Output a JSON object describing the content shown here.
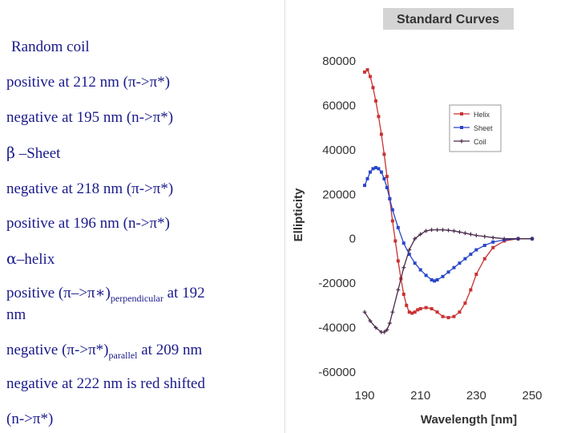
{
  "notes": {
    "random_coil": {
      "heading": "Random coil",
      "line1": "positive at 212 nm (π->π*)",
      "line2": "negative at 195 nm (n->π*)"
    },
    "beta_sheet": {
      "heading_symbol": "β",
      "heading": "–Sheet",
      "line1": "negative at 218 nm (π->π*)",
      "line2": "positive at 196 nm (n->π*)"
    },
    "alpha_helix": {
      "heading_symbol": "α",
      "heading": "–helix",
      "line1_pre": "positive (π–>π∗)",
      "line1_sub": "perpendicular",
      "line1_post": " at 192",
      "line1_cont": "nm",
      "line2_pre": "negative (π->π*)",
      "line2_sub": "parallel",
      "line2_post": " at 209 nm",
      "line3": "negative at 222 nm is red shifted",
      "line4": "(n->π*)"
    }
  },
  "chart_data": {
    "type": "line",
    "title": "Standard Curves",
    "xlabel": "Wavelength [nm]",
    "ylabel": "Ellipticity",
    "xlim": [
      190,
      250
    ],
    "ylim": [
      -60000,
      80000
    ],
    "xticks": [
      190,
      210,
      230,
      250
    ],
    "yticks": [
      80000,
      60000,
      40000,
      20000,
      0,
      -20000,
      -40000,
      -60000
    ],
    "ytick_labels": [
      "80000",
      "60000",
      "40000",
      "20000",
      "0",
      "-20000",
      "-40000",
      "-60000"
    ],
    "legend_position": "top-right",
    "colors": {
      "helix": "#c83232",
      "sheet": "#2846c8",
      "coil": "#4a2a4a",
      "title_bg": "#d4d4d4"
    },
    "series": [
      {
        "name": "Helix",
        "color_key": "helix",
        "x": [
          190,
          191,
          192,
          193,
          194,
          195,
          196,
          197,
          198,
          199,
          200,
          201,
          202,
          203,
          204,
          205,
          206,
          207,
          208,
          209,
          210,
          212,
          214,
          216,
          218,
          220,
          222,
          224,
          226,
          228,
          230,
          233,
          236,
          240,
          245,
          250
        ],
        "y": [
          75000,
          76000,
          73000,
          68000,
          62000,
          55000,
          47000,
          38000,
          28000,
          18000,
          8000,
          -1000,
          -10000,
          -18000,
          -25000,
          -30000,
          -33000,
          -33500,
          -33000,
          -32000,
          -31500,
          -31000,
          -31500,
          -33000,
          -35000,
          -35500,
          -35000,
          -33000,
          -29000,
          -23000,
          -16000,
          -9000,
          -4000,
          -1000,
          0,
          0
        ]
      },
      {
        "name": "Sheet",
        "color_key": "sheet",
        "x": [
          190,
          191,
          192,
          193,
          194,
          195,
          196,
          197,
          198,
          199,
          200,
          202,
          204,
          206,
          208,
          210,
          212,
          214,
          215,
          216,
          218,
          220,
          222,
          224,
          226,
          228,
          230,
          233,
          236,
          240,
          245,
          250
        ],
        "y": [
          24000,
          27000,
          30000,
          31500,
          32000,
          31500,
          30000,
          27000,
          23000,
          18000,
          13000,
          5000,
          -2000,
          -7000,
          -11000,
          -14000,
          -16500,
          -18500,
          -19000,
          -18500,
          -17000,
          -15000,
          -13000,
          -11000,
          -9000,
          -7000,
          -5000,
          -3000,
          -1500,
          -500,
          0,
          0
        ]
      },
      {
        "name": "Coil",
        "color_key": "coil",
        "x": [
          190,
          192,
          194,
          196,
          197,
          198,
          199,
          200,
          202,
          204,
          206,
          208,
          210,
          212,
          214,
          216,
          218,
          220,
          222,
          224,
          226,
          228,
          230,
          233,
          236,
          240,
          245,
          250
        ],
        "y": [
          -33000,
          -37000,
          -40000,
          -42000,
          -42000,
          -41000,
          -38000,
          -33000,
          -23000,
          -13000,
          -5000,
          0,
          2000,
          3500,
          4000,
          4000,
          4000,
          3800,
          3500,
          3000,
          2500,
          2000,
          1500,
          1000,
          500,
          0,
          0,
          0
        ]
      }
    ]
  }
}
